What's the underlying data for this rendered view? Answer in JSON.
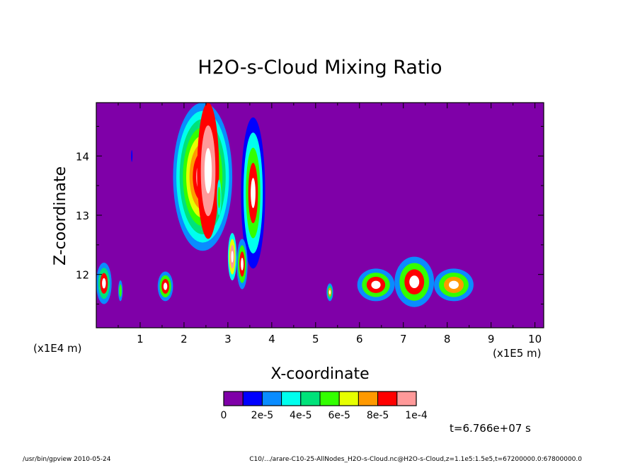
{
  "chart_data": {
    "type": "heatmap",
    "title": "H2O-s-Cloud Mixing Ratio",
    "xlabel": "X-coordinate",
    "ylabel": "Z-coordinate",
    "x_unit_label": "(x1E5 m)",
    "y_unit_label": "(x1E4 m)",
    "xlim": [
      0,
      10.2
    ],
    "ylim": [
      11.1,
      14.9
    ],
    "x_ticks": [
      "1",
      "2",
      "3",
      "4",
      "5",
      "6",
      "7",
      "8",
      "9",
      "10"
    ],
    "y_ticks": [
      "12",
      "13",
      "14"
    ],
    "background_color": "#7f00a8",
    "colorbar": {
      "colors": [
        "#7f00a8",
        "#0000ff",
        "#0a8cff",
        "#00ffee",
        "#00e27a",
        "#33ff00",
        "#e6ff00",
        "#ff9900",
        "#ff0000",
        "#ff9999"
      ],
      "tick_labels": [
        "0",
        "2e-5",
        "4e-5",
        "6e-5",
        "8e-5",
        "1e-4"
      ]
    },
    "time_label": "t=6.766e+07 s",
    "footer_left": "/usr/bin/gpview   2010-05-24",
    "footer_right": "C10/.../arare-C10-25-AllNodes_H2O-s-Cloud.nc@H2O-s-Cloud,z=1.1e5:1.5e5,t=67200000.0:67800000.0",
    "cells": [
      {
        "x": [
          1.75,
          3.1
        ],
        "z": [
          14.9,
          12.4
        ],
        "levels": [
          2,
          3,
          4,
          5,
          6,
          7,
          8,
          9
        ],
        "core": true
      },
      {
        "x": [
          2.3,
          2.8
        ],
        "z": [
          14.9,
          12.6
        ],
        "levels": [
          8,
          9
        ],
        "core": true
      },
      {
        "x": [
          3.3,
          3.85
        ],
        "z": [
          14.65,
          12.1
        ],
        "levels": [
          1,
          3,
          5,
          8
        ],
        "core": true
      },
      {
        "x": [
          2.75,
          2.85
        ],
        "z": [
          13.6,
          13.0
        ],
        "levels": [
          3,
          5
        ],
        "core": false
      },
      {
        "x": [
          3.0,
          3.2
        ],
        "z": [
          12.7,
          11.9
        ],
        "levels": [
          3,
          6,
          9
        ],
        "core": true
      },
      {
        "x": [
          3.2,
          3.45
        ],
        "z": [
          12.6,
          11.75
        ],
        "levels": [
          2,
          5,
          8
        ],
        "core": true
      },
      {
        "x": [
          0.8,
          0.82
        ],
        "z": [
          14.1,
          13.9
        ],
        "levels": [
          1
        ],
        "core": false
      },
      {
        "x": [
          0.0,
          0.35
        ],
        "z": [
          12.2,
          11.5
        ],
        "levels": [
          2,
          4,
          8
        ],
        "core": true
      },
      {
        "x": [
          0.5,
          0.6
        ],
        "z": [
          11.9,
          11.55
        ],
        "levels": [
          2,
          5
        ],
        "core": false
      },
      {
        "x": [
          1.4,
          1.75
        ],
        "z": [
          12.05,
          11.55
        ],
        "levels": [
          2,
          5,
          8
        ],
        "core": true
      },
      {
        "x": [
          5.25,
          5.4
        ],
        "z": [
          11.85,
          11.55
        ],
        "levels": [
          2,
          4,
          7
        ],
        "core": true
      },
      {
        "x": [
          5.95,
          6.8
        ],
        "z": [
          12.1,
          11.55
        ],
        "levels": [
          2,
          5,
          8
        ],
        "core": true
      },
      {
        "x": [
          6.8,
          7.7
        ],
        "z": [
          12.3,
          11.45
        ],
        "levels": [
          2,
          5,
          8
        ],
        "core": true
      },
      {
        "x": [
          7.7,
          8.6
        ],
        "z": [
          12.1,
          11.55
        ],
        "levels": [
          2,
          5,
          7
        ],
        "core": true
      }
    ]
  }
}
